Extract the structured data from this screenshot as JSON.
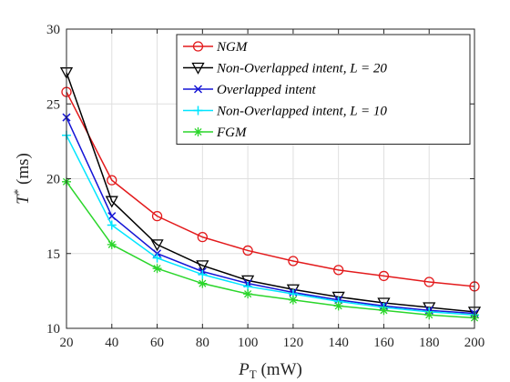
{
  "chart_data": {
    "type": "line",
    "xlabel": "P_T (mW)",
    "ylabel": "T* (ms)",
    "xlim": [
      20,
      200
    ],
    "ylim": [
      10,
      30
    ],
    "grid": true,
    "legend_position": "top-right",
    "x": [
      20,
      40,
      60,
      80,
      100,
      120,
      140,
      160,
      180,
      200
    ],
    "x_ticks": [
      "20",
      "40",
      "60",
      "80",
      "100",
      "120",
      "140",
      "160",
      "180",
      "200"
    ],
    "y_ticks": [
      "10",
      "15",
      "20",
      "25",
      "30"
    ],
    "series": [
      {
        "name": "NGM",
        "color": "#e31a1c",
        "marker": "circle",
        "values": [
          25.8,
          19.9,
          17.5,
          16.1,
          15.2,
          14.5,
          13.9,
          13.5,
          13.1,
          12.8
        ]
      },
      {
        "name": "Non-Overlapped intent, L = 20",
        "color": "#000000",
        "marker": "triangle-down",
        "values": [
          27.1,
          18.5,
          15.6,
          14.2,
          13.2,
          12.6,
          12.1,
          11.7,
          11.4,
          11.1
        ]
      },
      {
        "name": "Overlapped intent",
        "color": "#1515d6",
        "marker": "x",
        "values": [
          24.1,
          17.5,
          15.0,
          13.8,
          13.0,
          12.4,
          11.9,
          11.5,
          11.2,
          11.0
        ]
      },
      {
        "name": "Non-Overlapped intent, L = 10",
        "color": "#00e5ff",
        "marker": "plus",
        "values": [
          22.9,
          16.9,
          14.7,
          13.6,
          12.8,
          12.3,
          11.8,
          11.4,
          11.1,
          10.9
        ]
      },
      {
        "name": "FGM",
        "color": "#2bd62b",
        "marker": "asterisk",
        "values": [
          19.8,
          15.6,
          14.0,
          13.0,
          12.3,
          11.9,
          11.5,
          11.2,
          10.9,
          10.7
        ]
      }
    ]
  }
}
